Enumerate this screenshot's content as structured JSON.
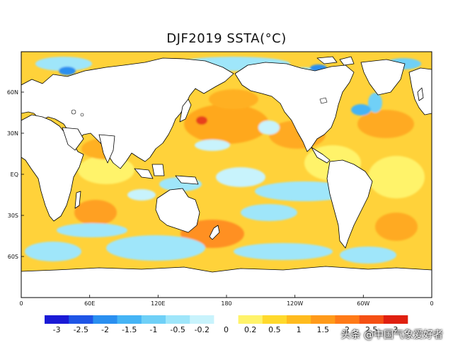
{
  "title": "DJF2019 SSTA(°C)",
  "map": {
    "lat_tick_labels": [
      "60N",
      "30N",
      "EQ",
      "30S",
      "60S"
    ],
    "lon_tick_labels": [
      "0",
      "60E",
      "120E",
      "180",
      "120W",
      "60W",
      "0"
    ],
    "land_color": "#ffffff",
    "coast_color": "#000000"
  },
  "colorbar": {
    "colors": [
      "#1a1ad6",
      "#1f55e6",
      "#2a8ff0",
      "#45b4f5",
      "#6fd0f7",
      "#9fe6fa",
      "#c8f3fc",
      "#ffffff",
      "#fff36a",
      "#ffd92c",
      "#ffbb1e",
      "#ff9a1a",
      "#ff7a18",
      "#f55014",
      "#e02010"
    ],
    "labels": [
      "-3",
      "-2.5",
      "-2",
      "-1.5",
      "-1",
      "-0.5",
      "-0.2",
      "0",
      "0.2",
      "0.5",
      "1",
      "1.5",
      "2",
      "2.5",
      "3"
    ]
  },
  "watermark": "头条 @中国气象爱好者"
}
